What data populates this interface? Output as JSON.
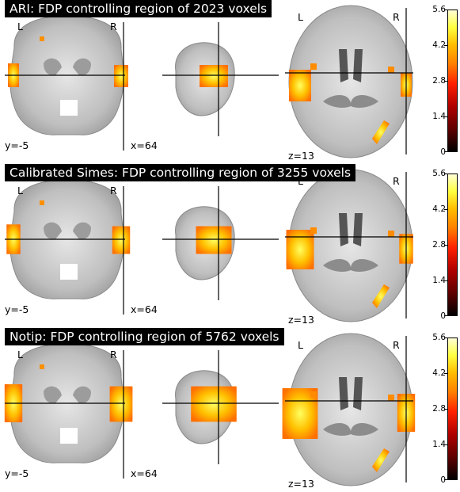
{
  "panels": [
    {
      "title": "ARI: FDP controlling region of 2023 voxels",
      "y_label": "y=-5",
      "x_label": "x=64",
      "z_label": "z=13",
      "left_label": "L",
      "right_label": "R",
      "left_label_axial": "L",
      "right_label_axial": "R",
      "colorbar_ticks": [
        "5.6",
        "4.2",
        "2.8",
        "1.4",
        "0"
      ]
    },
    {
      "title": "Calibrated Simes: FDP controlling region of 3255 voxels",
      "y_label": "y=-5",
      "x_label": "x=64",
      "z_label": "z=13",
      "left_label": "L",
      "right_label": "R",
      "left_label_axial": "L",
      "right_label_axial": "R",
      "colorbar_ticks": [
        "5.6",
        "4.2",
        "2.8",
        "1.4",
        "0"
      ]
    },
    {
      "title": "Notip: FDP controlling region of 5762 voxels",
      "y_label": "y=-5",
      "x_label": "x=64",
      "z_label": "z=13",
      "left_label": "L",
      "right_label": "R",
      "left_label_axial": "L",
      "right_label_axial": "R",
      "colorbar_ticks": [
        "5.6",
        "4.2",
        "2.8",
        "1.4",
        "0"
      ]
    }
  ],
  "colors": {
    "title_bg": "#000000",
    "title_fg": "#ffffff",
    "brain": "#c8c8c8",
    "activation_hot": "#ffd000",
    "activation_warm": "#ff8c00"
  }
}
